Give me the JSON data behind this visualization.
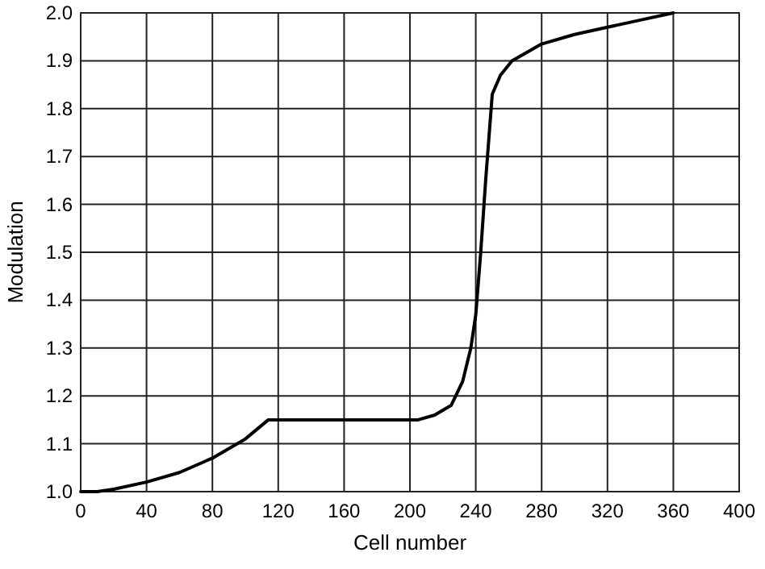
{
  "chart_data": {
    "type": "line",
    "xlabel": "Cell number",
    "ylabel": "Modulation",
    "x": [
      0,
      10,
      20,
      40,
      60,
      80,
      100,
      114,
      160,
      205,
      215,
      225,
      232,
      237,
      240,
      243,
      246,
      250,
      255,
      262,
      280,
      300,
      320,
      340,
      360
    ],
    "series": [
      {
        "color": "#000000",
        "values": [
          1.0,
          1.0,
          1.005,
          1.02,
          1.04,
          1.07,
          1.11,
          1.15,
          1.15,
          1.15,
          1.16,
          1.18,
          1.23,
          1.3,
          1.37,
          1.5,
          1.65,
          1.83,
          1.87,
          1.9,
          1.935,
          1.955,
          1.97,
          1.985,
          2.0
        ]
      }
    ],
    "xlim": [
      0,
      400
    ],
    "xticks": [
      0,
      40,
      80,
      120,
      160,
      200,
      240,
      280,
      320,
      360,
      400
    ],
    "ylim": [
      1.0,
      2.0
    ],
    "yticks": [
      {
        "value": 1.0,
        "label": "1.0"
      },
      1.1,
      1.2,
      1.3,
      1.4,
      1.5,
      1.6,
      1.7,
      1.8,
      1.9,
      {
        "value": 2.0,
        "label": "2.0"
      }
    ],
    "grid": true,
    "marker": "none",
    "line_style": "solid"
  }
}
